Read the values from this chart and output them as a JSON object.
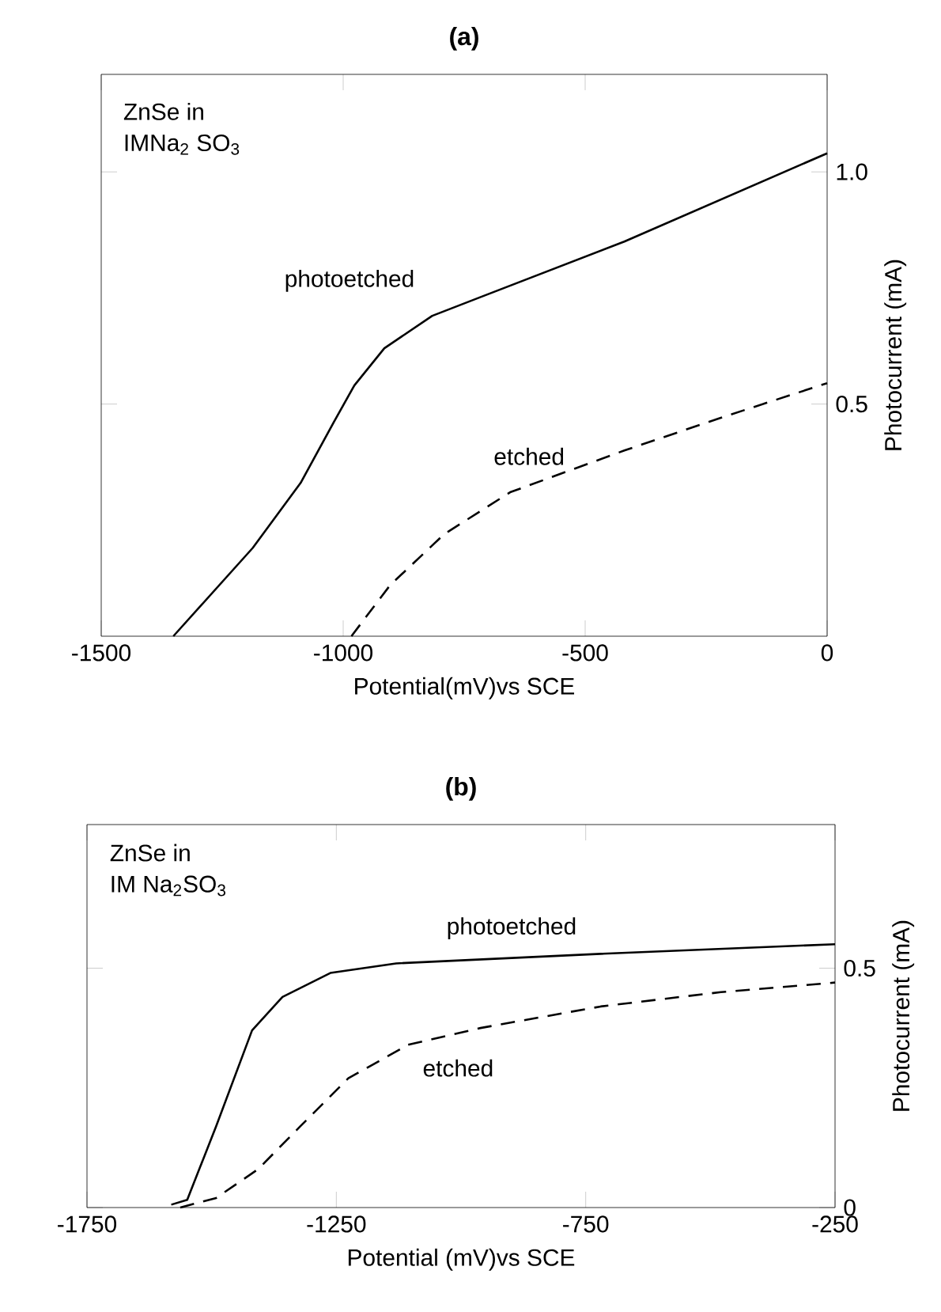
{
  "chart_data": [
    {
      "type": "line",
      "title": "(a)",
      "xlabel": "Potential(mV)vs SCE",
      "ylabel": "Photocurrent (mA)",
      "xlim": [
        -1500,
        0
      ],
      "ylim": [
        0,
        1.21
      ],
      "xticks": [
        -1500,
        -1000,
        -500,
        0
      ],
      "yticks": [
        0.5,
        {
          "value": 1.0,
          "label": "1.0"
        }
      ],
      "grid": false,
      "marker": "none",
      "annotations": [
        "ZnSe in",
        "IMNa$_{2}$ SO$_{3}$"
      ],
      "series": [
        {
          "name": "photoetched",
          "color": "#000000",
          "line_style": "solid",
          "x": [
            -1351,
            -1187,
            -1088,
            -1020,
            -977,
            -915,
            -816,
            -717,
            -419,
            0
          ],
          "values": [
            0,
            0.19,
            0.33,
            0.46,
            0.54,
            0.62,
            0.69,
            0.73,
            0.85,
            1.04
          ]
        },
        {
          "name": "etched",
          "color": "#000000",
          "line_style": "dashed",
          "x": [
            -983,
            -903,
            -791,
            -655,
            -419,
            -221,
            0
          ],
          "values": [
            0,
            0.11,
            0.22,
            0.31,
            0.4,
            0.47,
            0.545
          ]
        }
      ]
    },
    {
      "type": "line",
      "title": "(b)",
      "xlabel": "Potential (mV)vs SCE",
      "ylabel": "Photocurrent  (mA)",
      "xlim": [
        -1750,
        -250
      ],
      "ylim": [
        0,
        0.8
      ],
      "xticks": [
        -1750,
        -1250,
        -750,
        -250
      ],
      "yticks": [
        0,
        0.5
      ],
      "grid": false,
      "marker": "none",
      "annotations": [
        "ZnSe in",
        "IM Na$_{2}$SO$_{3}$"
      ],
      "series": [
        {
          "name": "photoetched",
          "color": "#000000",
          "line_style": "solid",
          "x": [
            -1581,
            -1549,
            -1491,
            -1419,
            -1358,
            -1262,
            -1130,
            -720,
            -250
          ],
          "values": [
            0.006,
            0.016,
            0.17,
            0.37,
            0.44,
            0.49,
            0.51,
            0.53,
            0.55
          ]
        },
        {
          "name": "etched",
          "color": "#000000",
          "line_style": "dashed",
          "x": [
            -1563,
            -1491,
            -1407,
            -1322,
            -1226,
            -1106,
            -961,
            -720,
            -479,
            -250
          ],
          "values": [
            0,
            0.02,
            0.08,
            0.17,
            0.27,
            0.34,
            0.375,
            0.42,
            0.45,
            0.47
          ]
        }
      ]
    }
  ]
}
